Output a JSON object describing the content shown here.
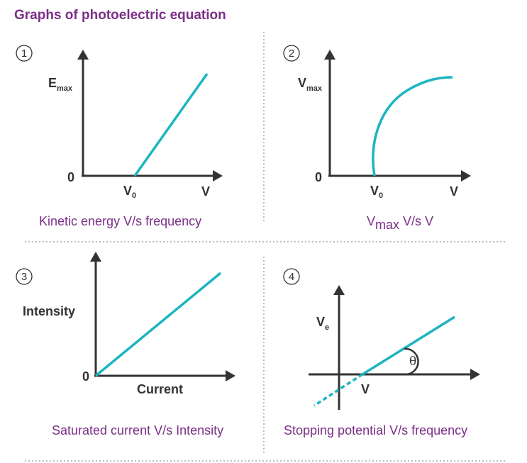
{
  "title": "Graphs of photoelectric equation",
  "colors": {
    "title": "#7b2f87",
    "caption": "#7b2f87",
    "axis": "#333333",
    "curve": "#1bb5c0",
    "divider": "#7a7a7a"
  },
  "panels": [
    {
      "number": "1",
      "y_label": "E",
      "y_label_sub": "max",
      "origin_label": "0",
      "x_marker": "V",
      "x_marker_sub": "0",
      "x_label": "V",
      "caption": "Kinetic energy V/s frequency"
    },
    {
      "number": "2",
      "y_label": "V",
      "y_label_sub": "max",
      "origin_label": "0",
      "x_marker": "V",
      "x_marker_sub": "0",
      "x_label": "V",
      "caption_main": "V",
      "caption_sub": "max",
      "caption_rest": " V/s V"
    },
    {
      "number": "3",
      "y_label": "Intensity",
      "origin_label": "0",
      "x_label": "Current",
      "caption": "Saturated current V/s Intensity"
    },
    {
      "number": "4",
      "y_label": "V",
      "y_label_sub": "e",
      "x_marker": "V",
      "angle_label": "θ",
      "caption": "Stopping potential V/s frequency"
    }
  ]
}
